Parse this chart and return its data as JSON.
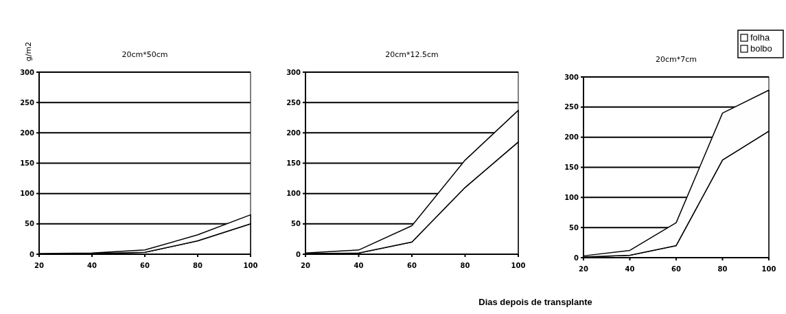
{
  "chart_data": [
    {
      "type": "area",
      "stacked": true,
      "title": "20cm*50cm",
      "ylabel": "g/m2",
      "x": [
        20,
        40,
        60,
        80,
        100
      ],
      "xlim": [
        20,
        100
      ],
      "xticks": [
        20,
        40,
        60,
        80,
        100
      ],
      "ylim": [
        0,
        300
      ],
      "yticks": [
        0,
        50,
        100,
        150,
        200,
        250,
        300
      ],
      "grid": "y",
      "legend": false,
      "series": [
        {
          "color": "#ffffff",
          "values": [
            0,
            1,
            3,
            22,
            50
          ]
        },
        {
          "color": "#fefefe",
          "values": [
            1,
            1,
            4,
            10,
            15
          ]
        }
      ]
    },
    {
      "type": "area",
      "stacked": true,
      "title": "20cm*12.5cm",
      "xlabel": "Dias depois de transplante",
      "x": [
        20,
        40,
        60,
        80,
        100
      ],
      "xlim": [
        20,
        100
      ],
      "xticks": [
        20,
        40,
        60,
        80,
        100
      ],
      "ylim": [
        0,
        300
      ],
      "yticks": [
        0,
        50,
        100,
        150,
        200,
        250,
        300
      ],
      "grid": "y",
      "legend": false,
      "series": [
        {
          "color": "#ffffff",
          "values": [
            1,
            2,
            20,
            110,
            185
          ]
        },
        {
          "color": "#fefefe",
          "values": [
            1,
            5,
            27,
            45,
            52
          ]
        }
      ]
    },
    {
      "type": "area",
      "stacked": true,
      "title": "20cm*7cm",
      "x": [
        20,
        40,
        60,
        80,
        100
      ],
      "xlim": [
        20,
        100
      ],
      "xticks": [
        20,
        40,
        60,
        80,
        100
      ],
      "ylim": [
        0,
        300
      ],
      "yticks": [
        0,
        50,
        100,
        150,
        200,
        250,
        300
      ],
      "grid": "y",
      "legend": "top right",
      "series": [
        {
          "name": "bolbo",
          "color": "#ffffff",
          "values": [
            1,
            4,
            20,
            162,
            210
          ]
        },
        {
          "name": "folha",
          "color": "#fefefe",
          "values": [
            2,
            8,
            38,
            78,
            68
          ]
        }
      ]
    }
  ]
}
